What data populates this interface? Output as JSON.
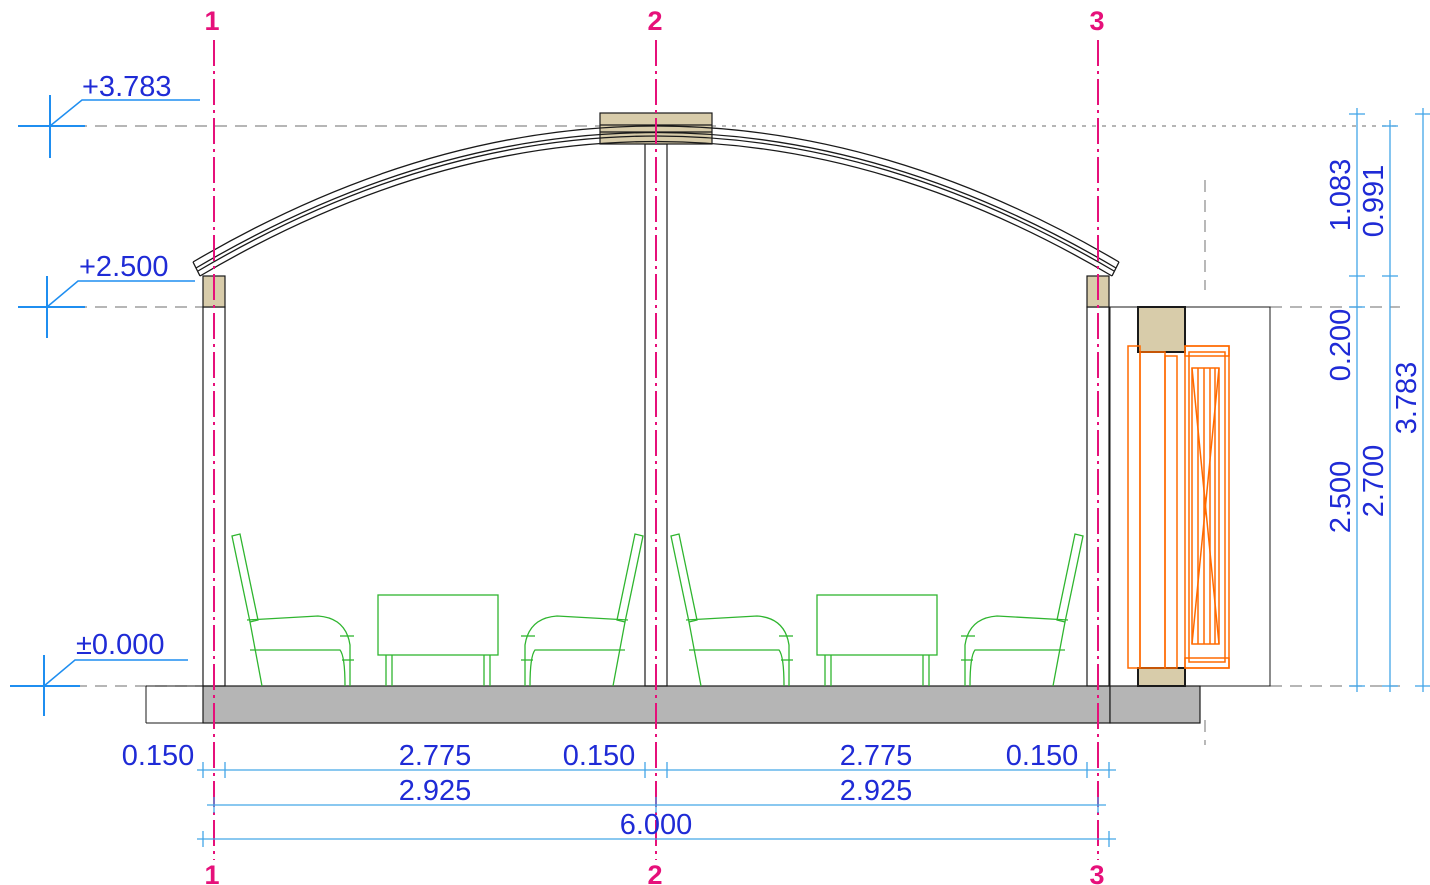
{
  "colors": {
    "axis": "#e6107a",
    "dimension_text": "#1f2bd6",
    "dimension_line": "#43a6e8",
    "furniture": "#2fb52f",
    "door": "#ff6a00",
    "beam_fill": "#d8ccaa",
    "floor_fill": "#b5b5b5",
    "line": "#1a1a1a"
  },
  "axes": [
    {
      "label": "1"
    },
    {
      "label": "2"
    },
    {
      "label": "3"
    }
  ],
  "levels": [
    {
      "value": "+3.783"
    },
    {
      "value": "+2.500"
    },
    {
      "value": "±0.000"
    }
  ],
  "bottom_dimensions": {
    "row1": [
      "0.150",
      "2.775",
      "0.150",
      "2.775",
      "0.150"
    ],
    "row2": [
      "2.925",
      "2.925"
    ],
    "row3": [
      "6.000"
    ]
  },
  "right_dimensions": {
    "column1": [
      "1.083",
      "0.200",
      "2.500"
    ],
    "column2": [
      "0.991",
      "2.700"
    ],
    "column3": [
      "3.783"
    ]
  },
  "furniture": [
    {
      "icon": "armchair-icon"
    },
    {
      "icon": "table-icon"
    },
    {
      "icon": "armchair-icon"
    },
    {
      "icon": "armchair-icon"
    },
    {
      "icon": "table-icon"
    },
    {
      "icon": "armchair-icon"
    }
  ],
  "door": {
    "icon": "door-icon"
  }
}
